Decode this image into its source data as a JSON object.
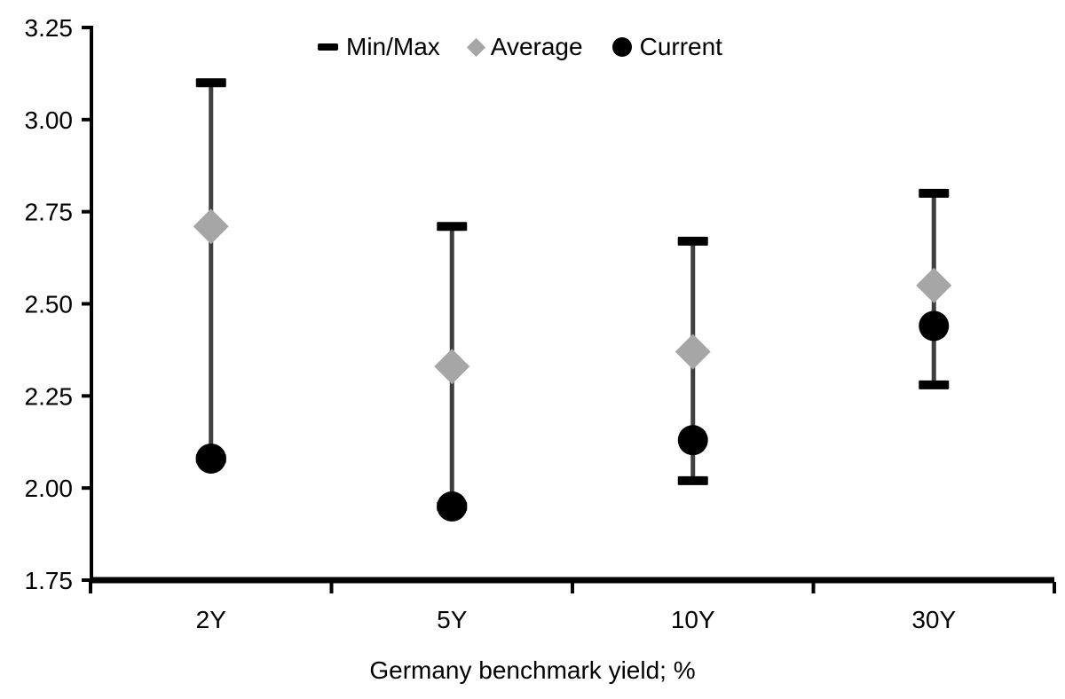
{
  "chart_data": {
    "type": "range_dot",
    "title": "",
    "xlabel": "Germany benchmark yield; %",
    "ylabel": "",
    "categories": [
      "2Y",
      "5Y",
      "10Y",
      "30Y"
    ],
    "series": [
      {
        "name": "Min/Max",
        "role": "range",
        "min": [
          2.08,
          1.95,
          2.02,
          2.28
        ],
        "max": [
          3.1,
          2.71,
          2.67,
          2.8
        ]
      },
      {
        "name": "Average",
        "role": "diamond-marker",
        "values": [
          2.71,
          2.33,
          2.37,
          2.55
        ]
      },
      {
        "name": "Current",
        "role": "circle-marker",
        "values": [
          2.08,
          1.95,
          2.13,
          2.44
        ]
      }
    ],
    "ylim": [
      1.75,
      3.25
    ],
    "ytick_step": 0.25,
    "ytick_labels": [
      "3.25",
      "3.00",
      "2.75",
      "2.50",
      "2.25",
      "2.00",
      "1.75"
    ],
    "legend": [
      {
        "label": "Min/Max",
        "marker": "dash",
        "color": "#000000"
      },
      {
        "label": "Average",
        "marker": "diamond",
        "color": "#a6a6a6"
      },
      {
        "label": "Current",
        "marker": "circle",
        "color": "#000000"
      }
    ],
    "legend_position": "top-center",
    "grid": false,
    "colors": {
      "range_line": "#3f3f3f",
      "cap": "#000000",
      "average": "#a6a6a6",
      "current": "#000000",
      "axis": "#000000",
      "text": "#000000",
      "background": "#ffffff"
    }
  }
}
